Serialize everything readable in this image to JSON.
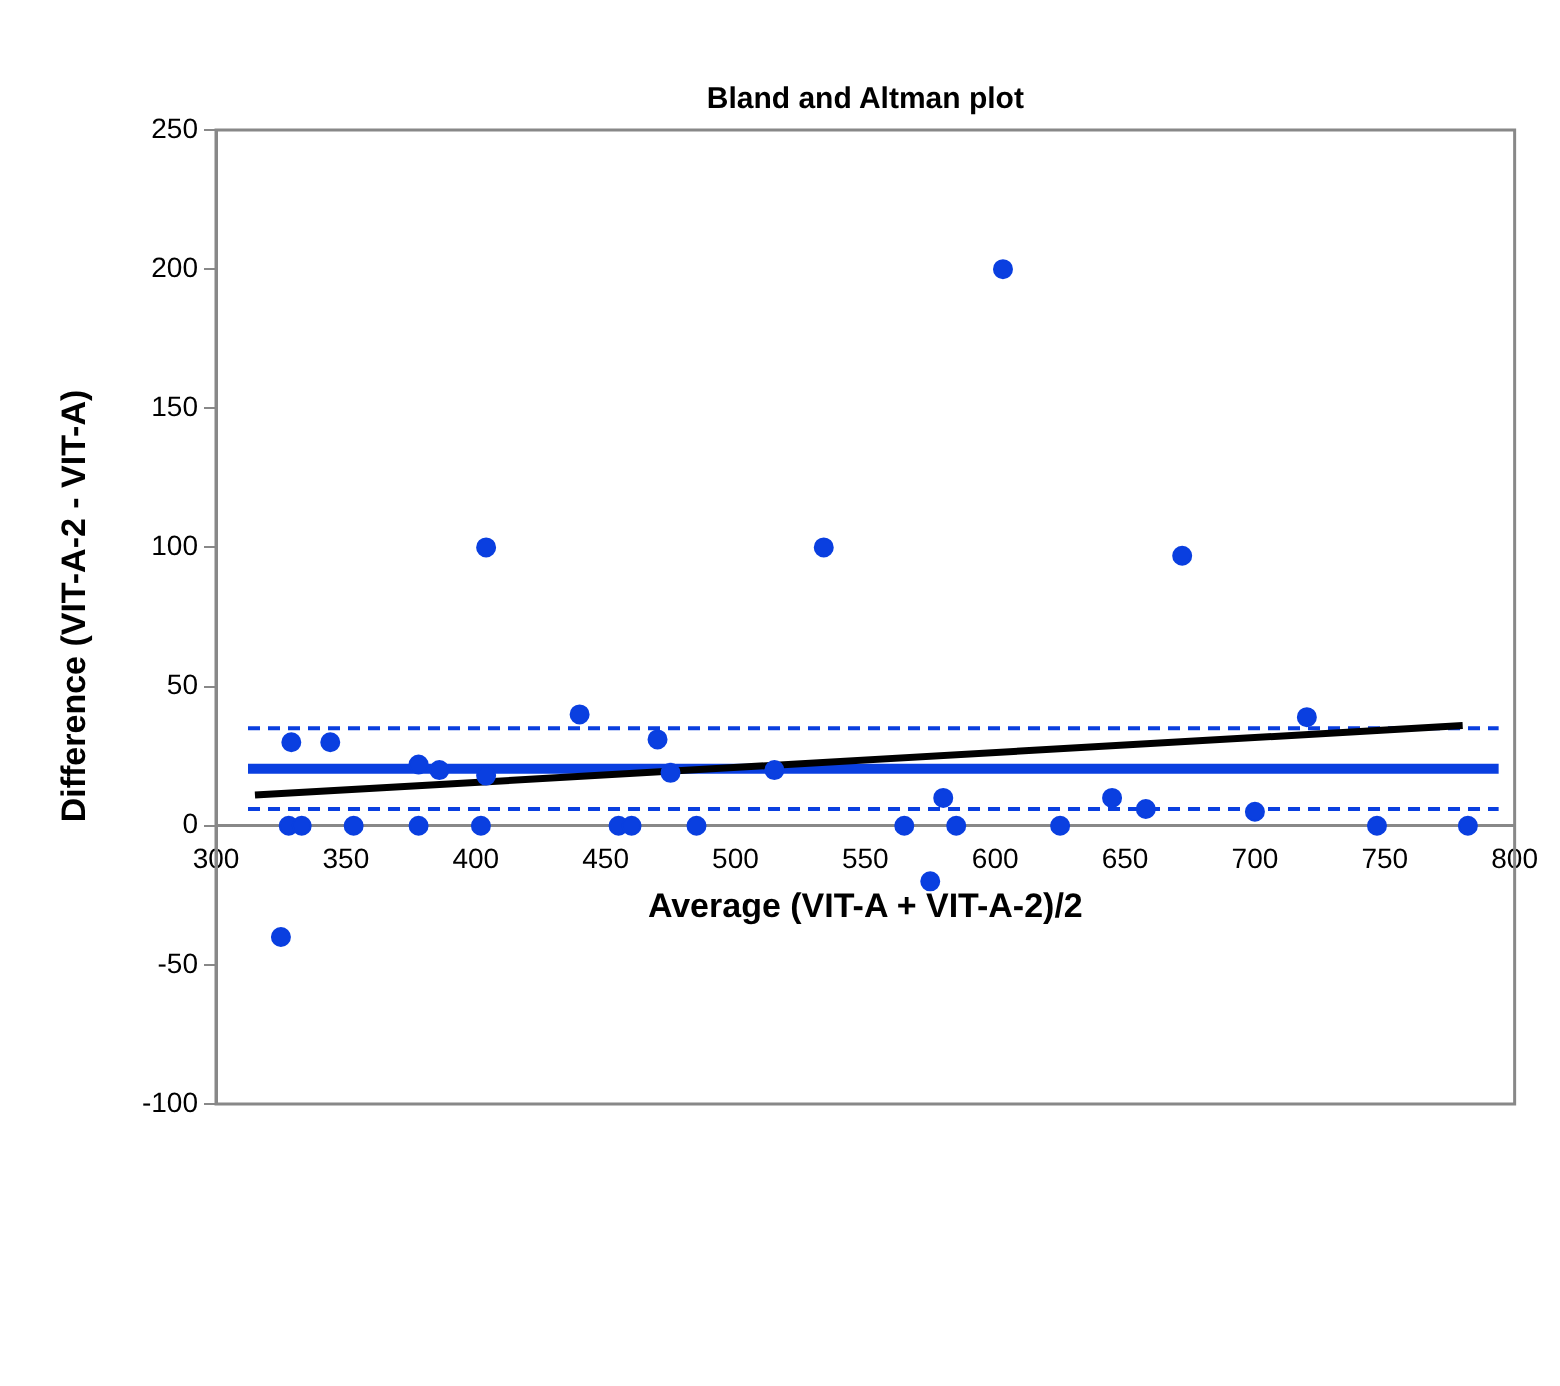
{
  "chart_data": {
    "type": "scatter",
    "title": "Bland and Altman plot",
    "xlabel": "Average (VIT-A + VIT-A-2)/2",
    "ylabel": "Difference (VIT-A-2 - VIT-A)",
    "xlim": [
      300,
      800
    ],
    "xticks": [
      300,
      350,
      400,
      450,
      500,
      550,
      600,
      650,
      700,
      750,
      800
    ],
    "ylim": [
      -100,
      250
    ],
    "yticks": [
      -100,
      -50,
      0,
      50,
      100,
      150,
      200,
      250
    ],
    "grid": false,
    "legend": false,
    "series": [
      {
        "marker": "circle",
        "color": "#0a3fe0",
        "x": [
          325,
          329,
          328,
          333,
          344,
          353,
          378,
          378,
          386,
          402,
          404,
          404,
          440,
          455,
          460,
          470,
          475,
          485,
          515,
          534,
          565,
          575,
          580,
          585,
          603,
          625,
          645,
          658,
          672,
          700,
          720,
          747,
          782
        ],
        "values": [
          -40,
          30,
          0,
          0,
          30,
          0,
          22,
          0,
          20,
          0,
          100,
          18,
          40,
          0,
          0,
          31,
          19,
          0,
          20,
          100,
          0,
          -20,
          10,
          0,
          200,
          0,
          10,
          6,
          97,
          5,
          39,
          0,
          0
        ]
      },
      {
        "type": "line",
        "color": "#000000",
        "x": [
          315,
          780
        ],
        "values": [
          11,
          36
        ]
      }
    ],
    "ref_lines": [
      {
        "axis": "y",
        "value": 20.5,
        "color": "#0a3fe0",
        "line_style": "solid"
      },
      {
        "axis": "y",
        "value": 35,
        "color": "#0a3fe0",
        "line_style": "dashed"
      },
      {
        "axis": "y",
        "value": 6,
        "color": "#0a3fe0",
        "line_style": "dashed"
      }
    ]
  }
}
